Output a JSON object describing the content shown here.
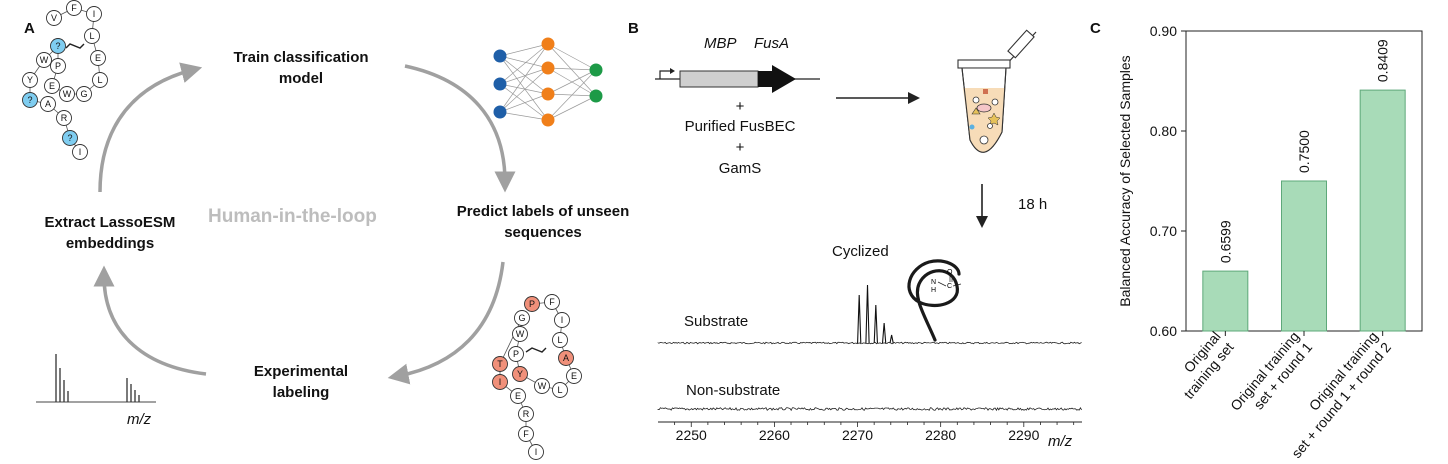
{
  "panel_a": {
    "letter": "A",
    "steps": {
      "train": "Train classification model",
      "predict": "Predict labels of unseen sequences",
      "experimental": "Experimental labeling",
      "extract": "Extract LassoESM embeddings"
    },
    "center_label": "Human-in-the-loop",
    "spectrum_axis_label": "m/z",
    "unlabeled_peptide": {
      "residues": [
        "V",
        "F",
        "I",
        "L",
        "E",
        "L",
        "G",
        "W",
        "E",
        "P",
        "?",
        "W",
        "Y",
        "?",
        "A",
        "R",
        "?",
        "I"
      ],
      "unknown_color": "#7fcdf0"
    },
    "labeled_peptide": {
      "residues": [
        "P",
        "F",
        "I",
        "L",
        "A",
        "E",
        "L",
        "W",
        "Y",
        "P",
        "W",
        "G",
        "T",
        "I",
        "E",
        "R",
        "F",
        "I"
      ],
      "known_color": "#f0907a"
    },
    "network_colors": {
      "input": "#1f5fa8",
      "hidden": "#f07f1a",
      "output": "#1d9a47"
    }
  },
  "panel_b": {
    "letter": "B",
    "gene_labels": [
      "MBP",
      "FusA"
    ],
    "reagents": [
      "+",
      "Purified FusBEC",
      "+",
      "GamS"
    ],
    "time_label": "18 h",
    "cyclized_label": "Cyclized",
    "trace_labels": [
      "Substrate",
      "Non-substrate"
    ],
    "mass_ticks": [
      "2250",
      "2260",
      "2270",
      "2280",
      "2290"
    ],
    "mass_axis_label": "m/z"
  },
  "chart_data": {
    "type": "bar",
    "title": "C",
    "categories": [
      "Original training set",
      "Original training set + round 1",
      "Original training set + round 1 + round 2"
    ],
    "category_lines": [
      [
        "Original",
        "training set"
      ],
      [
        "Original training",
        "set + round 1"
      ],
      [
        "Original training",
        "set + round 1 + round 2"
      ]
    ],
    "values": [
      0.6599,
      0.75,
      0.8409
    ],
    "value_labels": [
      "0.6599",
      "0.7500",
      "0.8409"
    ],
    "ylabel": "Balanced Accuracy of Selected Samples",
    "xlabel": "",
    "ylim": [
      0.6,
      0.9
    ],
    "yticks": [
      "0.60",
      "0.70",
      "0.80",
      "0.90"
    ],
    "bar_color": "#a8dbb8",
    "bar_edge": "#5ea87a",
    "grid": false
  }
}
